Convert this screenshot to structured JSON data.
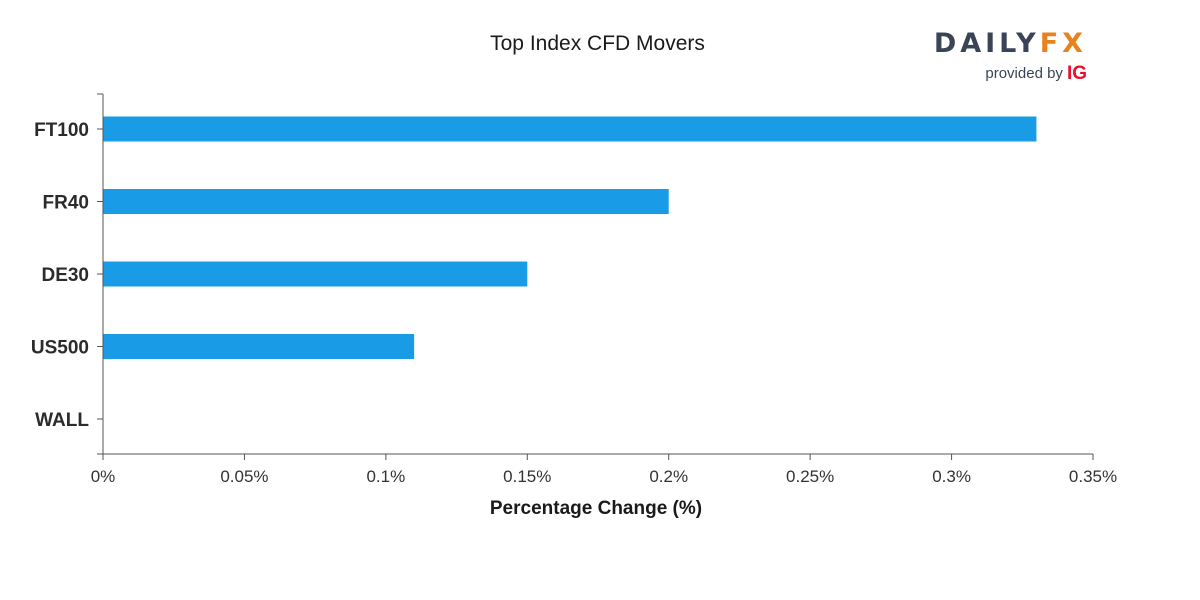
{
  "chart_data": {
    "type": "bar",
    "orientation": "horizontal",
    "title": "Top Index CFD Movers",
    "xlabel": "Percentage Change (%)",
    "ylabel": "",
    "categories": [
      "FT100",
      "FR40",
      "DE30",
      "US500",
      "WALL"
    ],
    "values": [
      0.33,
      0.2,
      0.15,
      0.11,
      0
    ],
    "xlim": [
      0,
      0.35
    ],
    "x_ticks": [
      0,
      0.05,
      0.1,
      0.15,
      0.2,
      0.25,
      0.3,
      0.35
    ],
    "x_tick_labels": [
      "0%",
      "0.05%",
      "0.1%",
      "0.15%",
      "0.2%",
      "0.25%",
      "0.3%",
      "0.35%"
    ],
    "grid": false,
    "legend": "none",
    "bar_color": "#1a9be6",
    "axis_color": "#555555"
  },
  "brand": {
    "logo_part1": "DAILY",
    "logo_part2": "FX",
    "provided_by": "provided by",
    "provider": "IG",
    "colors": {
      "dark": "#3a4456",
      "orange": "#e8821e",
      "red": "#e8102c"
    }
  }
}
